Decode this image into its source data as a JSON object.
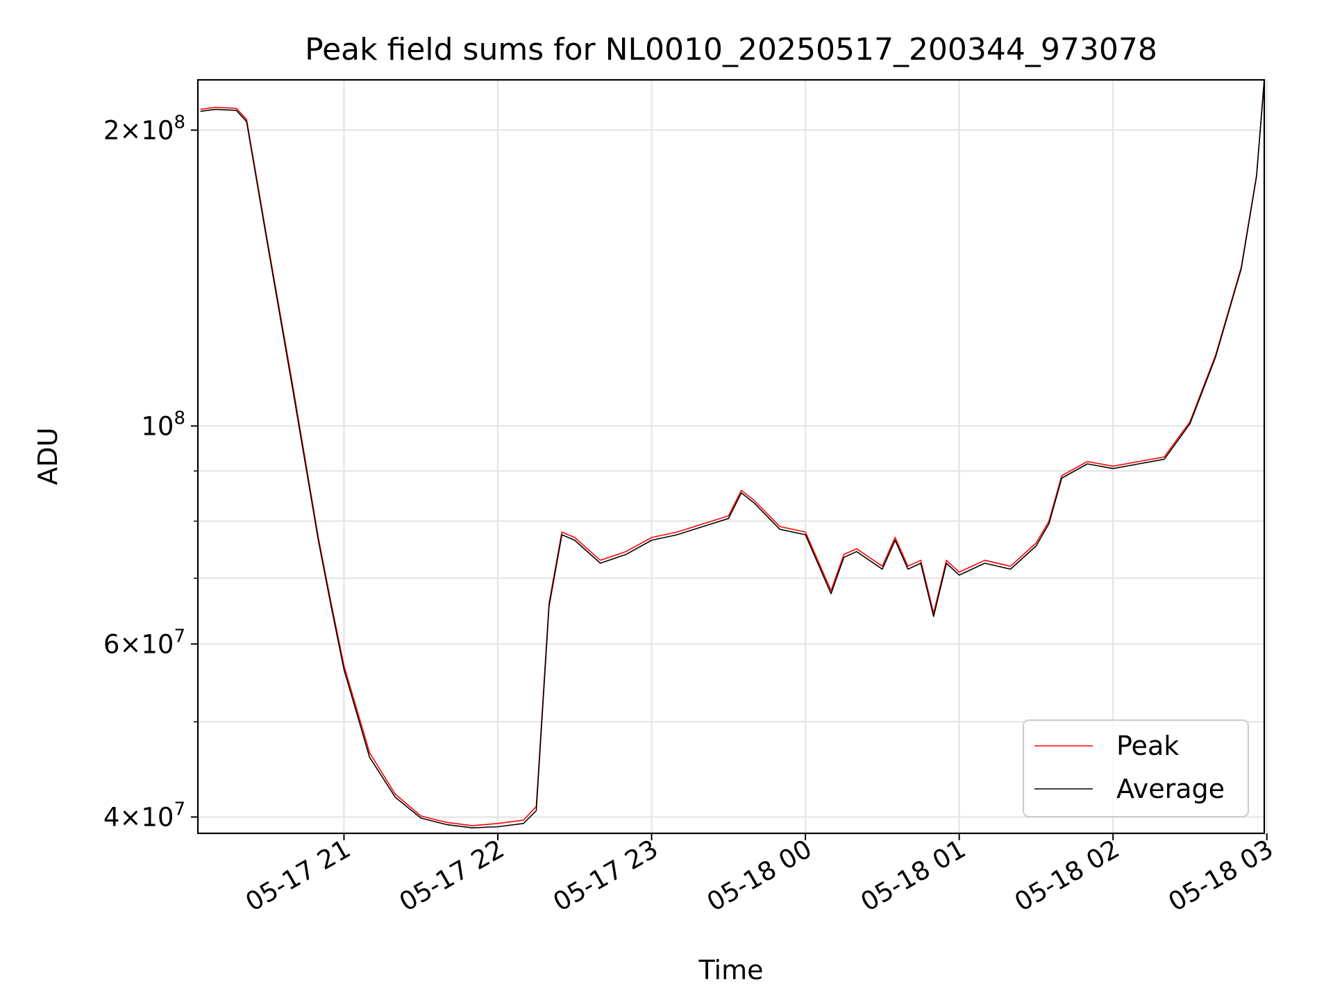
{
  "chart_data": {
    "type": "line",
    "title": "Peak field sums for NL0010_20250517_200344_973078",
    "xlabel": "Time",
    "ylabel": "ADU",
    "yscale": "log",
    "xlim": [
      "2025-05-17 20:03",
      "2025-05-18 02:59"
    ],
    "ylim": [
      38500000,
      225000000
    ],
    "grid": true,
    "legend_position": "lower right",
    "x_ticks": [
      "05-17 21",
      "05-17 22",
      "05-17 23",
      "05-18 00",
      "05-18 01",
      "05-18 02",
      "05-18 03"
    ],
    "y_ticks": [
      {
        "value": 40000000,
        "mantissa": "4",
        "exponent": "7"
      },
      {
        "value": 60000000,
        "mantissa": "6",
        "exponent": "7"
      },
      {
        "value": 100000000,
        "mantissa": "",
        "exponent": "8"
      },
      {
        "value": 200000000,
        "mantissa": "2",
        "exponent": "8"
      }
    ],
    "series": [
      {
        "name": "Peak",
        "color": "#ff0000",
        "x": [
          "2025-05-17 20:04",
          "2025-05-17 20:10",
          "2025-05-17 20:18",
          "2025-05-17 20:22",
          "2025-05-17 20:30",
          "2025-05-17 20:40",
          "2025-05-17 20:50",
          "2025-05-17 20:55",
          "2025-05-17 21:00",
          "2025-05-17 21:10",
          "2025-05-17 21:20",
          "2025-05-17 21:30",
          "2025-05-17 21:40",
          "2025-05-17 21:50",
          "2025-05-17 22:00",
          "2025-05-17 22:10",
          "2025-05-17 22:15",
          "2025-05-17 22:20",
          "2025-05-17 22:25",
          "2025-05-17 22:30",
          "2025-05-17 22:40",
          "2025-05-17 22:50",
          "2025-05-17 23:00",
          "2025-05-17 23:10",
          "2025-05-17 23:20",
          "2025-05-17 23:30",
          "2025-05-17 23:35",
          "2025-05-17 23:40",
          "2025-05-17 23:50",
          "2025-05-18 00:00",
          "2025-05-18 00:10",
          "2025-05-18 00:15",
          "2025-05-18 00:20",
          "2025-05-18 00:30",
          "2025-05-18 00:35",
          "2025-05-18 00:40",
          "2025-05-18 00:45",
          "2025-05-18 00:50",
          "2025-05-18 00:55",
          "2025-05-18 01:00",
          "2025-05-18 01:10",
          "2025-05-18 01:20",
          "2025-05-18 01:30",
          "2025-05-18 01:35",
          "2025-05-18 01:40",
          "2025-05-18 01:50",
          "2025-05-18 02:00",
          "2025-05-18 02:10",
          "2025-05-18 02:20",
          "2025-05-18 02:30",
          "2025-05-18 02:40",
          "2025-05-18 02:50",
          "2025-05-18 02:56",
          "2025-05-18 02:59"
        ],
        "values": [
          210000000,
          211000000,
          210500000,
          205000000,
          155000000,
          110000000,
          77000000,
          66000000,
          57000000,
          46500000,
          42200000,
          40100000,
          39500000,
          39200000,
          39400000,
          39700000,
          41000000,
          66000000,
          78000000,
          77000000,
          73000000,
          74500000,
          77000000,
          78000000,
          79500000,
          81000000,
          86000000,
          84000000,
          79000000,
          78000000,
          68000000,
          74000000,
          75000000,
          72000000,
          77000000,
          72000000,
          73000000,
          64500000,
          73000000,
          71000000,
          73000000,
          72000000,
          76000000,
          80000000,
          89000000,
          92000000,
          91000000,
          92000000,
          93000000,
          101000000,
          118000000,
          145000000,
          180000000,
          225000000
        ]
      },
      {
        "name": "Average",
        "color": "#000000",
        "x": [
          "2025-05-17 20:04",
          "2025-05-17 20:10",
          "2025-05-17 20:18",
          "2025-05-17 20:22",
          "2025-05-17 20:30",
          "2025-05-17 20:40",
          "2025-05-17 20:50",
          "2025-05-17 20:55",
          "2025-05-17 21:00",
          "2025-05-17 21:10",
          "2025-05-17 21:20",
          "2025-05-17 21:30",
          "2025-05-17 21:40",
          "2025-05-17 21:50",
          "2025-05-17 22:00",
          "2025-05-17 22:10",
          "2025-05-17 22:15",
          "2025-05-17 22:20",
          "2025-05-17 22:25",
          "2025-05-17 22:30",
          "2025-05-17 22:40",
          "2025-05-17 22:50",
          "2025-05-17 23:00",
          "2025-05-17 23:10",
          "2025-05-17 23:20",
          "2025-05-17 23:30",
          "2025-05-17 23:35",
          "2025-05-17 23:40",
          "2025-05-17 23:50",
          "2025-05-18 00:00",
          "2025-05-18 00:10",
          "2025-05-18 00:15",
          "2025-05-18 00:20",
          "2025-05-18 00:30",
          "2025-05-18 00:35",
          "2025-05-18 00:40",
          "2025-05-18 00:45",
          "2025-05-18 00:50",
          "2025-05-18 00:55",
          "2025-05-18 01:00",
          "2025-05-18 01:10",
          "2025-05-18 01:20",
          "2025-05-18 01:30",
          "2025-05-18 01:35",
          "2025-05-18 01:40",
          "2025-05-18 01:50",
          "2025-05-18 02:00",
          "2025-05-18 02:10",
          "2025-05-18 02:20",
          "2025-05-18 02:30",
          "2025-05-18 02:40",
          "2025-05-18 02:50",
          "2025-05-18 02:56",
          "2025-05-18 02:59"
        ],
        "values": [
          209000000,
          210000000,
          209500000,
          204000000,
          154000000,
          109000000,
          76500000,
          65500000,
          56500000,
          46000000,
          41900000,
          39900000,
          39300000,
          39000000,
          39100000,
          39400000,
          40600000,
          65500000,
          77500000,
          76500000,
          72500000,
          74000000,
          76500000,
          77500000,
          79000000,
          80500000,
          85500000,
          83500000,
          78500000,
          77500000,
          67500000,
          73500000,
          74500000,
          71500000,
          76500000,
          71500000,
          72500000,
          64000000,
          72500000,
          70500000,
          72500000,
          71500000,
          75500000,
          79500000,
          88500000,
          91500000,
          90500000,
          91500000,
          92500000,
          100500000,
          117500000,
          144500000,
          179500000,
          225000000
        ]
      }
    ]
  }
}
